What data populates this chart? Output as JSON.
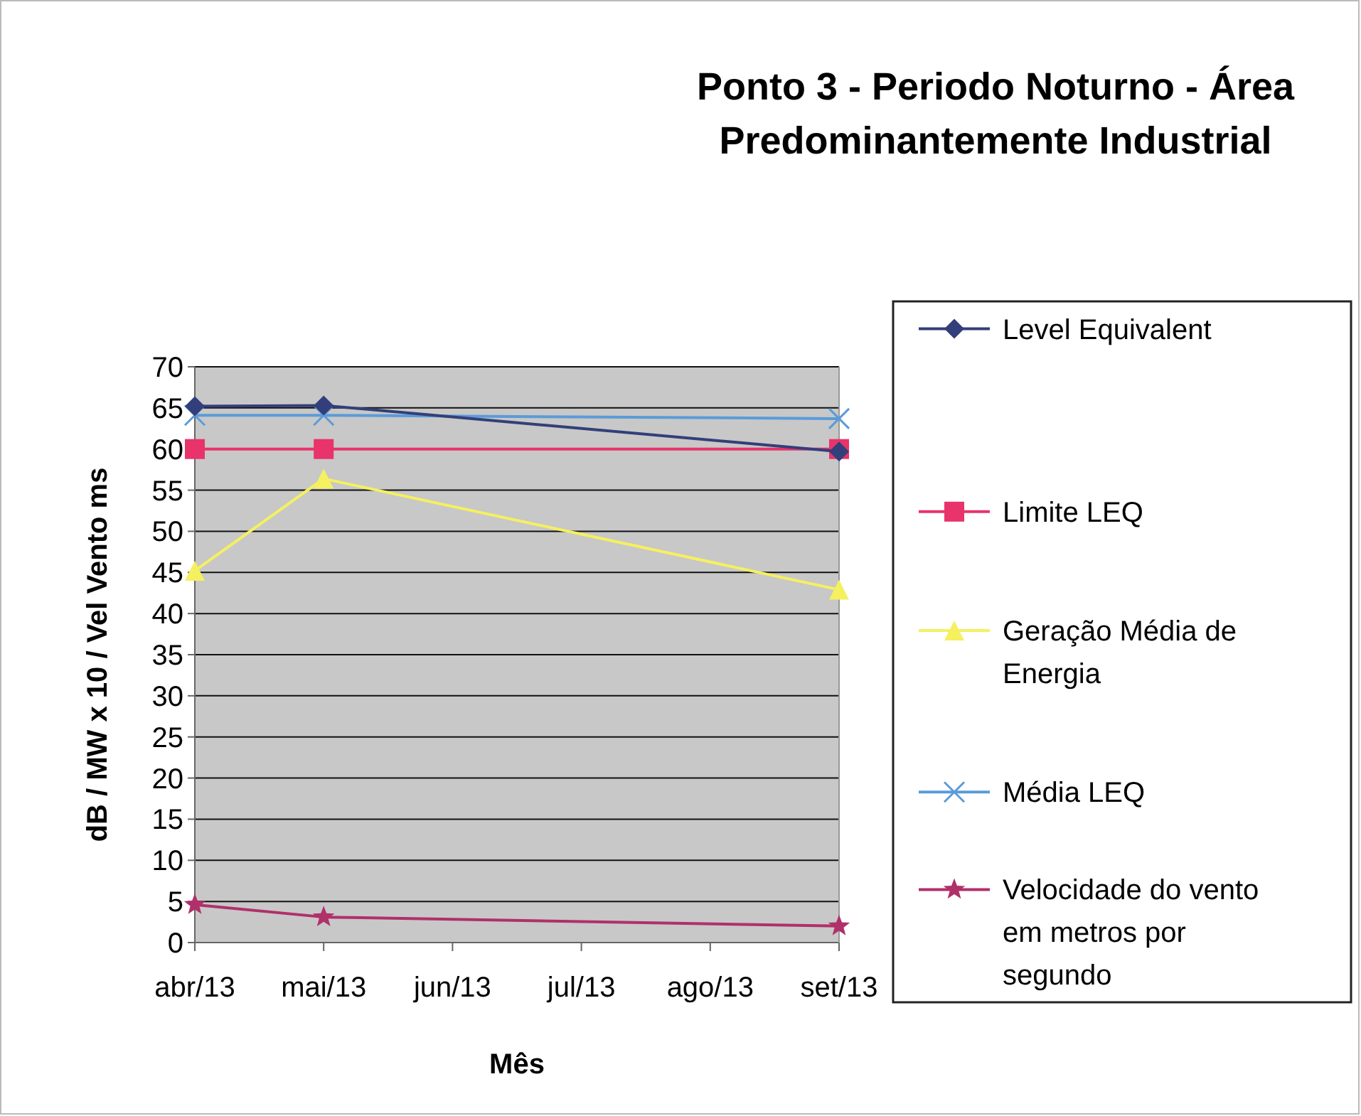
{
  "chart_data": {
    "type": "line",
    "title": "Ponto 3 - Periodo Noturno - Área\nPredominantemente Industrial",
    "xlabel": "Mês",
    "ylabel": "dB / MW x 10 / Vel Vento ms",
    "categories": [
      "abr/13",
      "mai/13",
      "jun/13",
      "jul/13",
      "ago/13",
      "set/13"
    ],
    "ylim": [
      0,
      70
    ],
    "yticks": [
      0,
      5,
      10,
      15,
      20,
      25,
      30,
      35,
      40,
      45,
      50,
      55,
      60,
      65,
      70
    ],
    "grid": "y",
    "legend": "right",
    "series": [
      {
        "name": "Level Equivalent",
        "color": "#333f7a",
        "marker": "diamond",
        "values": [
          65.2,
          65.3,
          null,
          null,
          null,
          59.7
        ]
      },
      {
        "name": "Limite LEQ",
        "color": "#e8336b",
        "marker": "square",
        "values": [
          60,
          60,
          null,
          null,
          null,
          60
        ]
      },
      {
        "name": "Geração Média de Energia",
        "color": "#f5f060",
        "marker": "triangle",
        "values": [
          45.2,
          56.4,
          null,
          null,
          null,
          42.9
        ]
      },
      {
        "name": "Média LEQ",
        "color": "#5b9bd8",
        "marker": "cross",
        "values": [
          64.1,
          64.1,
          null,
          null,
          null,
          63.7
        ]
      },
      {
        "name": "Velocidade do vento em metros por segundo",
        "color": "#b0306a",
        "marker": "star",
        "values": [
          4.6,
          3.1,
          null,
          null,
          null,
          2.0
        ]
      }
    ]
  }
}
